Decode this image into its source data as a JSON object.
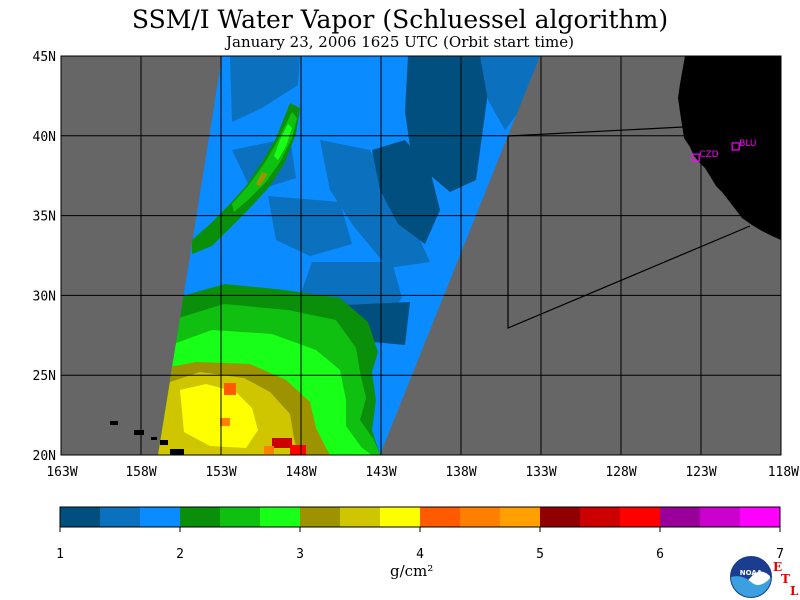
{
  "title": "SSM/I Water Vapor (Schluessel algorithm)",
  "subtitle": "January 23, 2006  1625 UTC  (Orbit start time)",
  "map": {
    "lon_range": [
      -163,
      -118
    ],
    "lat_range": [
      20,
      45
    ],
    "lat_labels": [
      "45N",
      "40N",
      "35N",
      "30N",
      "25N",
      "20N"
    ],
    "lon_labels": [
      "163W",
      "158W",
      "153W",
      "148W",
      "143W",
      "138W",
      "133W",
      "128W",
      "123W",
      "118W"
    ],
    "colors": {
      "background": "#666666",
      "land": "#000000",
      "site_marker": "#ff00ff"
    },
    "sites": [
      {
        "id": "CZD",
        "lon": -123.3,
        "lat": 38.6
      },
      {
        "id": "BLU",
        "lon": -120.8,
        "lat": 39.3
      }
    ]
  },
  "legend": {
    "unit": "g/cm²",
    "ticks": [
      "1",
      "2",
      "3",
      "4",
      "5",
      "6",
      "7"
    ],
    "min": 1,
    "max": 7,
    "colors": [
      "#004f7e",
      "#0b70bd",
      "#0a8bff",
      "#0a8f0a",
      "#10c010",
      "#18ff18",
      "#9d9300",
      "#cfc600",
      "#ffff00",
      "#ff5a00",
      "#ff8000",
      "#ffa000",
      "#900000",
      "#cc0000",
      "#ff0000",
      "#990099",
      "#cc00cc",
      "#ff00ff"
    ]
  },
  "logo": {
    "text": "NOAA",
    "etl": [
      "E",
      "T",
      "L"
    ]
  }
}
